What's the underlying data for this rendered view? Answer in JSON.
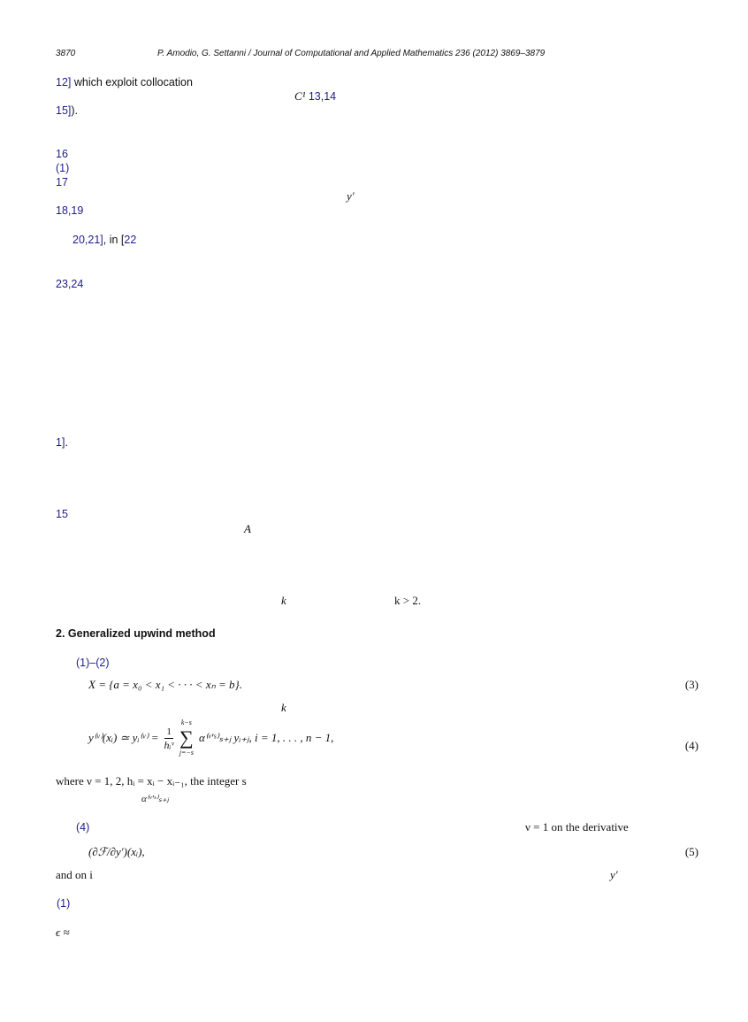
{
  "header": {
    "page_number": "3870",
    "running_title": "P. Amodio, G. Settanni / Journal of Computational and Applied Mathematics 236 (2012) 3869–3879"
  },
  "fragments": {
    "f1_ref": "12]",
    "f1_text": " which exploit collocation",
    "f2_sym": "C¹",
    "f2_ref": "13,14",
    "f3_ref": "15]",
    "f3_text": ").",
    "f4_ref": "16",
    "f5_ref": "(1)",
    "f6_ref": "17",
    "f7_sym": "y′",
    "f8_ref": "18,19",
    "f9_ref": "20,21]",
    "f9_text": ", in [",
    "f9_ref2": "22",
    "f10_ref": "23,24",
    "f11_ref": "1]",
    "f11_text": ".",
    "f12_ref": "15",
    "f13_sym": "A",
    "f14_sym": "k",
    "f15_text": "k > 2."
  },
  "section": {
    "heading": "2.  Generalized upwind method",
    "ref_1_2": "(1)–(2)",
    "eq3": "X = {a = x₀ < x₁ < · · · < xₙ = b}.",
    "eq3_num": "(3)",
    "k_sym": "k",
    "eq4_lhs": "y⁽ᵛ⁾(xᵢ) ≃ yᵢ⁽ᵛ⁾ =",
    "eq4_frac_num": "1",
    "eq4_frac_den": "hᵢᵛ",
    "eq4_sum_top": "k−s",
    "eq4_sum_bottom": "j=−s",
    "eq4_rhs": "α⁽ᵛ'ˢ⁾ₛ₊ⱼ yᵢ₊ⱼ,    i = 1, . . . , n − 1,",
    "eq4_num": "(4)",
    "where_text": "where ν = 1, 2, hᵢ = xᵢ − xᵢ₋₁, the integer s",
    "alpha_sym": "α⁽ᵛ'ˢ⁾ₛ₊ⱼ",
    "ref_4": "(4)",
    "nu_text": "ν = 1 on the derivative",
    "eq5": "(∂ℱ/∂y′)(xᵢ),",
    "eq5_num": "(5)",
    "and_on": "and on i",
    "y_prime": "y′",
    "ref_1": "(1)",
    "epsilon": "ϵ ≈"
  }
}
